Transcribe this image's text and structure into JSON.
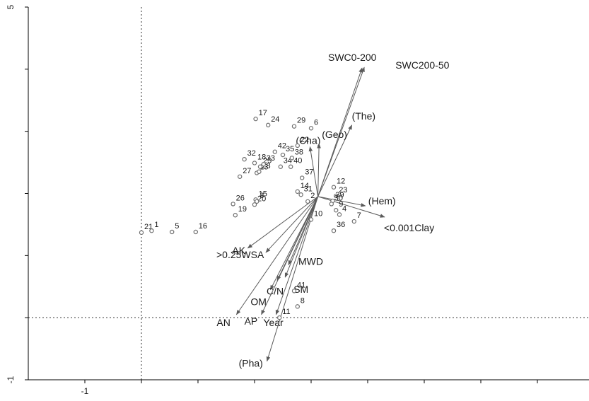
{
  "chart_data": {
    "type": "scatter",
    "title": "",
    "xlabel": "",
    "ylabel": "",
    "xlim": [
      -1.0,
      3.0
    ],
    "ylim": [
      -1.0,
      5.0
    ],
    "x_ticks": [
      -1.0,
      -0.5,
      0.0,
      0.5,
      1.0,
      1.5,
      2.0,
      2.5,
      3.0
    ],
    "x_tick_labels": [
      "-1",
      "",
      "",
      "",
      "",
      "",
      "",
      "",
      ""
    ],
    "y_ticks": [
      -1.0,
      0.0,
      1.0,
      2.0,
      3.0,
      4.0,
      5.0
    ],
    "y_tick_labels": [
      "-1",
      "",
      "",
      "",
      "",
      "",
      "5"
    ],
    "grid": false,
    "reference_lines": {
      "x": -0.5,
      "y": 0.0
    },
    "arrow_origin": [
      1.06,
      1.95
    ],
    "colors": {
      "points": "#6e6e6e",
      "arrows": "#5a5a5a",
      "axes": "#000000",
      "reference": "#333333"
    },
    "samples": [
      {
        "label": "21",
        "x": -0.5,
        "y": 1.37
      },
      {
        "label": "1",
        "x": -0.41,
        "y": 1.4
      },
      {
        "label": "5",
        "x": -0.23,
        "y": 1.38
      },
      {
        "label": "16",
        "x": -0.02,
        "y": 1.38
      },
      {
        "label": "26",
        "x": 0.31,
        "y": 1.83
      },
      {
        "label": "19",
        "x": 0.33,
        "y": 1.65
      },
      {
        "label": "27",
        "x": 0.37,
        "y": 2.27
      },
      {
        "label": "32",
        "x": 0.41,
        "y": 2.55
      },
      {
        "label": "15",
        "x": 0.51,
        "y": 1.9
      },
      {
        "label": "20",
        "x": 0.5,
        "y": 1.82
      },
      {
        "label": "3",
        "x": 0.52,
        "y": 1.87
      },
      {
        "label": "18",
        "x": 0.5,
        "y": 2.49
      },
      {
        "label": "13",
        "x": 0.52,
        "y": 2.33
      },
      {
        "label": "28",
        "x": 0.54,
        "y": 2.35
      },
      {
        "label": "25",
        "x": 0.55,
        "y": 2.43
      },
      {
        "label": "33",
        "x": 0.58,
        "y": 2.47
      },
      {
        "label": "14",
        "x": 0.88,
        "y": 2.03
      },
      {
        "label": "31",
        "x": 0.91,
        "y": 1.98
      },
      {
        "label": "2",
        "x": 0.97,
        "y": 1.87
      },
      {
        "label": "10",
        "x": 1.0,
        "y": 1.58
      },
      {
        "label": "17",
        "x": 0.51,
        "y": 3.2
      },
      {
        "label": "24",
        "x": 0.62,
        "y": 3.1
      },
      {
        "label": "42",
        "x": 0.68,
        "y": 2.67
      },
      {
        "label": "35",
        "x": 0.75,
        "y": 2.62
      },
      {
        "label": "34",
        "x": 0.73,
        "y": 2.43
      },
      {
        "label": "38",
        "x": 0.83,
        "y": 2.57
      },
      {
        "label": "40",
        "x": 0.82,
        "y": 2.43
      },
      {
        "label": "29",
        "x": 0.85,
        "y": 3.08
      },
      {
        "label": "22",
        "x": 0.88,
        "y": 2.77
      },
      {
        "label": "6",
        "x": 1.0,
        "y": 3.05
      },
      {
        "label": "37",
        "x": 0.92,
        "y": 2.25
      },
      {
        "label": "12",
        "x": 1.2,
        "y": 2.1
      },
      {
        "label": "23",
        "x": 1.22,
        "y": 1.96
      },
      {
        "label": "39",
        "x": 1.19,
        "y": 1.88
      },
      {
        "label": "30",
        "x": 1.18,
        "y": 1.83
      },
      {
        "label": "9",
        "x": 1.22,
        "y": 1.73
      },
      {
        "label": "4",
        "x": 1.25,
        "y": 1.66
      },
      {
        "label": "7",
        "x": 1.38,
        "y": 1.55
      },
      {
        "label": "36",
        "x": 1.2,
        "y": 1.4
      },
      {
        "label": "41",
        "x": 0.85,
        "y": 0.43
      },
      {
        "label": "8",
        "x": 0.88,
        "y": 0.18
      },
      {
        "label": "11",
        "x": 0.72,
        "y": 0.0
      }
    ],
    "vectors": [
      {
        "label": "SWC0-200",
        "x": 1.45,
        "y": 4.02
      },
      {
        "label": "SWC200-50",
        "x": 1.47,
        "y": 4.03
      },
      {
        "label": "(The)",
        "x": 1.36,
        "y": 3.1
      },
      {
        "label": "(Cha)",
        "x": 0.99,
        "y": 2.75
      },
      {
        "label": "(Geo)",
        "x": 1.07,
        "y": 2.8
      },
      {
        "label": "(Hem)",
        "x": 1.48,
        "y": 1.8
      },
      {
        "label": "<0.001Clay",
        "x": 1.65,
        "y": 1.62
      },
      {
        "label": "AK",
        "x": 0.44,
        "y": 1.12
      },
      {
        "label": ">0.25WSA",
        "x": 0.6,
        "y": 1.05
      },
      {
        "label": "MWD",
        "x": 0.8,
        "y": 0.85
      },
      {
        "label": "OM",
        "x": 0.64,
        "y": 0.45
      },
      {
        "label": "C/N",
        "x": 0.7,
        "y": 0.6
      },
      {
        "label": "SM",
        "x": 0.77,
        "y": 0.65
      },
      {
        "label": "AN",
        "x": 0.34,
        "y": 0.05
      },
      {
        "label": "AP",
        "x": 0.56,
        "y": 0.05
      },
      {
        "label": "Year",
        "x": 0.69,
        "y": 0.05
      },
      {
        "label": "(Pha)",
        "x": 0.61,
        "y": -0.7
      }
    ]
  }
}
